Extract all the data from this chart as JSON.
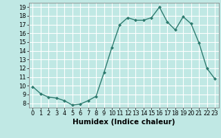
{
  "x": [
    0,
    1,
    2,
    3,
    4,
    5,
    6,
    7,
    8,
    9,
    10,
    11,
    12,
    13,
    14,
    15,
    16,
    17,
    18,
    19,
    20,
    21,
    22,
    23
  ],
  "y": [
    9.9,
    9.1,
    8.7,
    8.6,
    8.3,
    7.8,
    7.9,
    8.3,
    8.8,
    11.5,
    14.4,
    17.0,
    17.8,
    17.5,
    17.5,
    17.8,
    19.0,
    17.3,
    16.4,
    17.9,
    17.1,
    14.9,
    12.0,
    10.8
  ],
  "line_color": "#2d7a6e",
  "marker": "D",
  "marker_size": 2.0,
  "bg_color": "#c0e8e4",
  "grid_color": "#ffffff",
  "xlabel": "Humidex (Indice chaleur)",
  "ylim": [
    7.5,
    19.5
  ],
  "xlim": [
    -0.5,
    23.5
  ],
  "yticks": [
    8,
    9,
    10,
    11,
    12,
    13,
    14,
    15,
    16,
    17,
    18,
    19
  ],
  "xticks": [
    0,
    1,
    2,
    3,
    4,
    5,
    6,
    7,
    8,
    9,
    10,
    11,
    12,
    13,
    14,
    15,
    16,
    17,
    18,
    19,
    20,
    21,
    22,
    23
  ],
  "xlabel_fontsize": 7.5,
  "tick_fontsize": 6.0,
  "line_width": 1.0
}
